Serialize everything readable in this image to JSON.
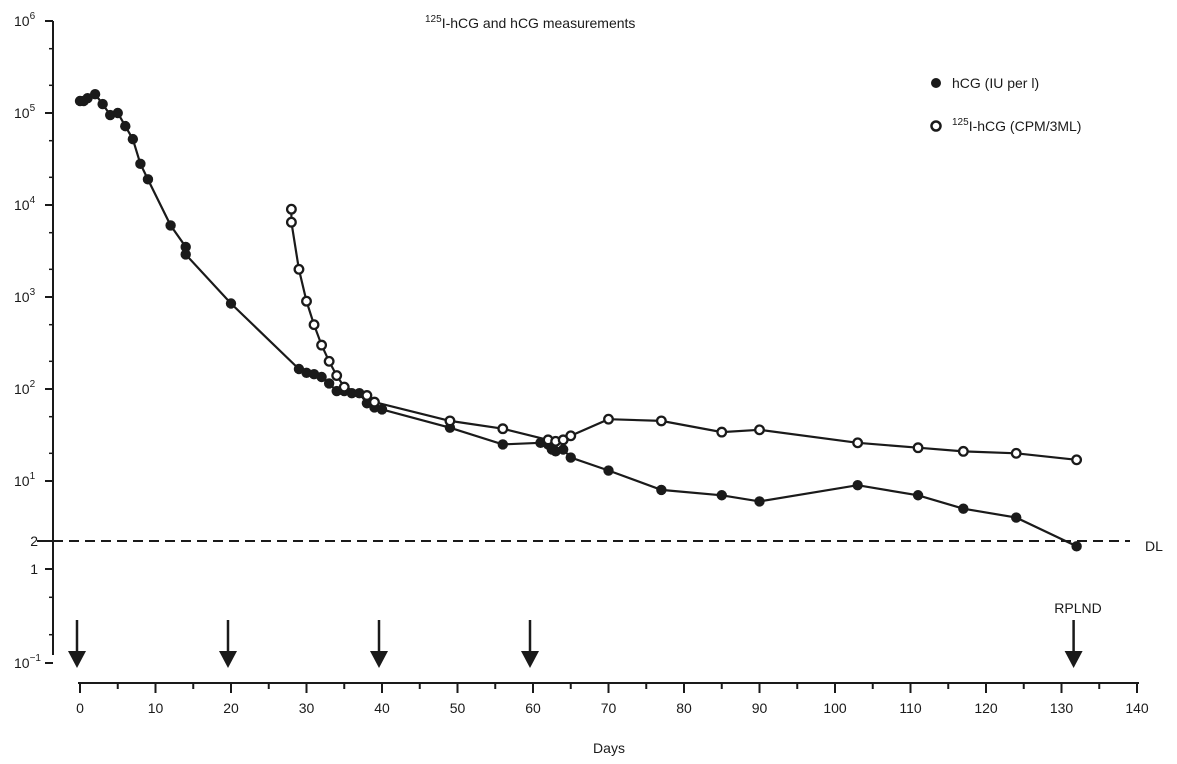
{
  "chart_data": {
    "type": "line",
    "title_sup": "125",
    "title_rest": "I-hCG and hCG measurements",
    "xlabel": "Days",
    "ylabel": "",
    "xlim": [
      0,
      140
    ],
    "x_ticks": [
      0,
      10,
      20,
      30,
      40,
      50,
      60,
      70,
      80,
      90,
      100,
      110,
      120,
      130,
      140
    ],
    "y_scale": "log",
    "ylim": [
      0.1,
      1000000
    ],
    "y_ticks": [
      {
        "value": 1000000,
        "base": "10",
        "exp": "6"
      },
      {
        "value": 100000,
        "base": "10",
        "exp": "5"
      },
      {
        "value": 10000,
        "base": "10",
        "exp": "4"
      },
      {
        "value": 1000,
        "base": "10",
        "exp": "3"
      },
      {
        "value": 100,
        "base": "10",
        "exp": "2"
      },
      {
        "value": 10,
        "base": "10",
        "exp": "1"
      },
      {
        "value": 2,
        "base": "2",
        "exp": ""
      },
      {
        "value": 1,
        "base": "1",
        "exp": ""
      },
      {
        "value": 0.1,
        "base": "10",
        "exp": "−1"
      }
    ],
    "legend_position": "top-right",
    "series": [
      {
        "name": "hCG (IU per l)",
        "marker": "filled-circle",
        "x": [
          0,
          0.5,
          1,
          2,
          3,
          4,
          5,
          6,
          7,
          8,
          9,
          12,
          14,
          14,
          20,
          29,
          30,
          31,
          32,
          33,
          34,
          35,
          36,
          37,
          38,
          39,
          40,
          49,
          56,
          61,
          62,
          62.5,
          63,
          64,
          65,
          70,
          77,
          85,
          90,
          103,
          111,
          117,
          124,
          132
        ],
        "y": [
          135000,
          135000,
          145000,
          160000,
          125000,
          95000,
          100000,
          72000,
          52000,
          28000,
          19000,
          6000,
          3500,
          2900,
          850,
          165,
          150,
          145,
          135,
          115,
          95,
          95,
          90,
          90,
          70,
          63,
          60,
          38,
          25,
          26,
          25,
          22,
          21,
          22,
          18,
          13,
          8,
          7,
          6,
          9,
          7,
          5,
          4,
          1.95
        ]
      },
      {
        "name": "I-hCG (CPM/3ML)",
        "name_sup": "125",
        "marker": "open-circle",
        "x": [
          28,
          28,
          29,
          30,
          31,
          32,
          33,
          34,
          35,
          38,
          39,
          49,
          56,
          62,
          63,
          64,
          65,
          70,
          77,
          85,
          90,
          103,
          111,
          117,
          124,
          132
        ],
        "y": [
          9000,
          6500,
          2000,
          900,
          500,
          300,
          200,
          140,
          105,
          85,
          72,
          45,
          37,
          28,
          27,
          28,
          31,
          47,
          45,
          34,
          36,
          26,
          23,
          21,
          20,
          17
        ]
      }
    ],
    "reference_line": {
      "value": 2,
      "label": "DL",
      "style": "dashed"
    },
    "treatment_arrows": [
      0,
      20,
      40,
      60,
      132
    ],
    "annotations": [
      {
        "label": "RPLND",
        "x": 132
      }
    ]
  }
}
